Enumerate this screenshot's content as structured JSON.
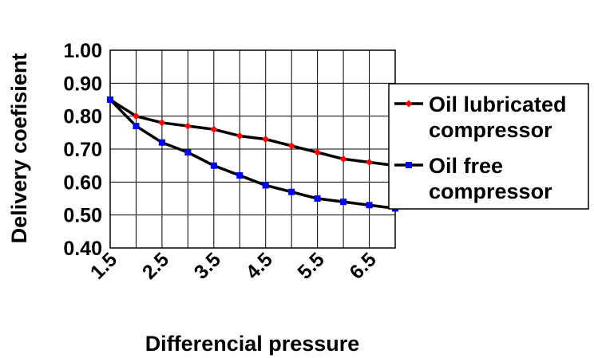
{
  "chart_data": {
    "type": "line",
    "xlabel": "Differencial pressure",
    "ylabel": "Delivery coefisient",
    "ylim": [
      0.4,
      1.0
    ],
    "yticks": [
      "1.00",
      "0.90",
      "0.80",
      "0.70",
      "0.60",
      "0.50",
      "0.40"
    ],
    "ytick_values": [
      1.0,
      0.9,
      0.8,
      0.7,
      0.6,
      0.5,
      0.4
    ],
    "x": [
      1.5,
      2.0,
      2.5,
      3.0,
      3.5,
      4.0,
      4.5,
      5.0,
      5.5,
      6.0,
      6.5,
      7.0
    ],
    "xtick_labels": [
      "1.5",
      "2.5",
      "3.5",
      "4.5",
      "5.5",
      "6.5"
    ],
    "xtick_values": [
      1.5,
      2.5,
      3.5,
      4.5,
      5.5,
      6.5
    ],
    "xlim": [
      1.5,
      7.0
    ],
    "grid": true,
    "legend_position": "right",
    "series": [
      {
        "name": "Oil lubricated compressor",
        "legend_lines": [
          "Oil lubricated",
          "compressor"
        ],
        "color": "#ff0000",
        "marker": "diamond",
        "values": [
          0.85,
          0.8,
          0.78,
          0.77,
          0.76,
          0.74,
          0.73,
          0.71,
          0.69,
          0.67,
          0.66,
          0.65
        ]
      },
      {
        "name": "Oil free compressor",
        "legend_lines": [
          "Oil free",
          "compressor"
        ],
        "color": "#0000ff",
        "marker": "square",
        "values": [
          0.85,
          0.77,
          0.72,
          0.69,
          0.65,
          0.62,
          0.59,
          0.57,
          0.55,
          0.54,
          0.53,
          0.52
        ]
      }
    ]
  }
}
